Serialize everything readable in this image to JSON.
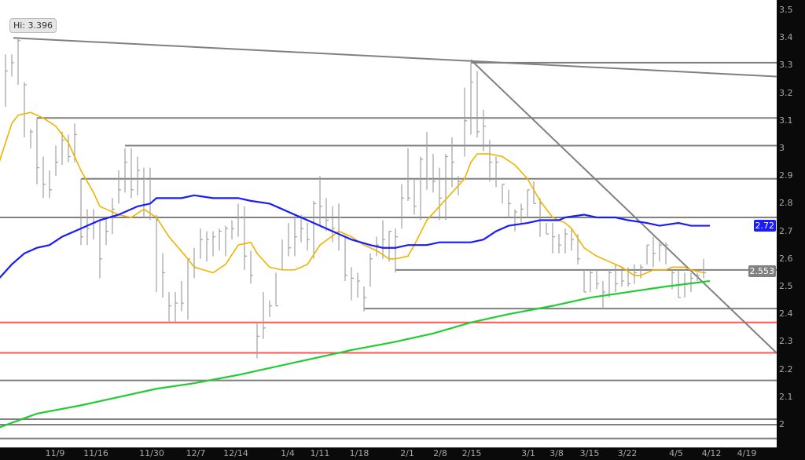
{
  "chart_data": {
    "type": "ohlc",
    "title": "",
    "xlabel": "",
    "ylabel": "",
    "ylim": [
      1.95,
      3.55
    ],
    "grid": false,
    "y_ticks": [
      "3.5",
      "3.4",
      "3.3",
      "3.2",
      "3.1",
      "3",
      "2.9",
      "2.8",
      "2.7",
      "2.6",
      "2.5",
      "2.4",
      "2.3",
      "2.2",
      "2.1",
      "2"
    ],
    "x_ticks": [
      "11/9",
      "11/16",
      "11/30",
      "12/7",
      "12/14",
      "1/4",
      "1/11",
      "1/18",
      "2/1",
      "2/8",
      "2/15",
      "3/1",
      "3/8",
      "3/15",
      "3/22",
      "4/5",
      "4/12",
      "4/19"
    ],
    "bars_hlc": [
      [
        3.34,
        3.15,
        3.28
      ],
      [
        3.34,
        3.26,
        3.31
      ],
      [
        3.4,
        3.23,
        3.39
      ],
      [
        3.24,
        3.04,
        3.23
      ],
      [
        3.07,
        3.0,
        3.06
      ],
      [
        3.11,
        2.87,
        2.93
      ],
      [
        2.97,
        2.82,
        2.87
      ],
      [
        2.92,
        2.82,
        2.85
      ],
      [
        3.01,
        2.9,
        2.95
      ],
      [
        3.06,
        2.94,
        3.03
      ],
      [
        3.05,
        2.95,
        2.97
      ],
      [
        3.09,
        2.95,
        3.05
      ],
      [
        2.89,
        2.65,
        2.68
      ],
      [
        2.78,
        2.65,
        2.71
      ],
      [
        2.78,
        2.67,
        2.73
      ],
      [
        2.74,
        2.53,
        2.6
      ],
      [
        2.75,
        2.65,
        2.7
      ],
      [
        2.82,
        2.69,
        2.78
      ],
      [
        2.92,
        2.8,
        2.85
      ],
      [
        3.0,
        2.84,
        2.95
      ],
      [
        3.0,
        2.82,
        2.85
      ],
      [
        2.97,
        2.83,
        2.92
      ],
      [
        2.93,
        2.75,
        2.89
      ],
      [
        2.93,
        2.74,
        2.75
      ],
      [
        2.76,
        2.48,
        2.74
      ],
      [
        2.62,
        2.46,
        2.55
      ],
      [
        2.48,
        2.37,
        2.43
      ],
      [
        2.48,
        2.37,
        2.44
      ],
      [
        2.52,
        2.41,
        2.44
      ],
      [
        2.6,
        2.38,
        2.6
      ],
      [
        2.64,
        2.53,
        2.57
      ],
      [
        2.71,
        2.6,
        2.67
      ],
      [
        2.7,
        2.59,
        2.67
      ],
      [
        2.7,
        2.61,
        2.68
      ],
      [
        2.71,
        2.63,
        2.7
      ],
      [
        2.72,
        2.61,
        2.71
      ],
      [
        2.74,
        2.67,
        2.71
      ],
      [
        2.8,
        2.68,
        2.75
      ],
      [
        2.79,
        2.56,
        2.61
      ],
      [
        2.63,
        2.51,
        2.54
      ],
      [
        2.37,
        2.24,
        2.32
      ],
      [
        2.48,
        2.31,
        2.35
      ],
      [
        2.45,
        2.39,
        2.43
      ],
      [
        2.55,
        2.43,
        2.43
      ],
      [
        2.67,
        2.56,
        2.56
      ],
      [
        2.73,
        2.61,
        2.64
      ],
      [
        2.76,
        2.61,
        2.68
      ],
      [
        2.76,
        2.66,
        2.71
      ],
      [
        2.73,
        2.63,
        2.67
      ],
      [
        2.81,
        2.6,
        2.8
      ],
      [
        2.9,
        2.72,
        2.79
      ],
      [
        2.82,
        2.7,
        2.74
      ],
      [
        2.79,
        2.66,
        2.71
      ],
      [
        2.8,
        2.63,
        2.75
      ],
      [
        2.68,
        2.52,
        2.54
      ],
      [
        2.57,
        2.45,
        2.53
      ],
      [
        2.55,
        2.46,
        2.52
      ],
      [
        2.5,
        2.41,
        2.46
      ],
      [
        2.62,
        2.5,
        2.6
      ],
      [
        2.68,
        2.61,
        2.65
      ],
      [
        2.74,
        2.6,
        2.67
      ],
      [
        2.7,
        2.59,
        2.7
      ],
      [
        2.71,
        2.55,
        2.68
      ],
      [
        2.87,
        2.71,
        2.82
      ],
      [
        3.0,
        2.81,
        2.82
      ],
      [
        2.89,
        2.76,
        2.79
      ],
      [
        2.97,
        2.74,
        2.96
      ],
      [
        3.06,
        2.85,
        2.89
      ],
      [
        2.98,
        2.84,
        2.88
      ],
      [
        2.93,
        2.74,
        2.82
      ],
      [
        2.98,
        2.74,
        2.97
      ],
      [
        3.04,
        2.86,
        2.95
      ],
      [
        2.9,
        2.83,
        2.88
      ],
      [
        3.22,
        2.97,
        3.1
      ],
      [
        3.31,
        3.05,
        3.24
      ],
      [
        3.28,
        3.04,
        3.06
      ],
      [
        3.14,
        2.99,
        3.08
      ],
      [
        3.03,
        2.88,
        2.95
      ],
      [
        2.97,
        2.86,
        2.95
      ],
      [
        2.87,
        2.8,
        2.87
      ],
      [
        2.85,
        2.75,
        2.8
      ],
      [
        2.78,
        2.7,
        2.77
      ],
      [
        2.8,
        2.73,
        2.78
      ],
      [
        2.85,
        2.75,
        2.85
      ],
      [
        2.88,
        2.8,
        2.8
      ],
      [
        2.82,
        2.68,
        2.8
      ],
      [
        2.73,
        2.69,
        2.69
      ],
      [
        2.73,
        2.62,
        2.68
      ],
      [
        2.69,
        2.62,
        2.65
      ],
      [
        2.71,
        2.62,
        2.69
      ],
      [
        2.71,
        2.63,
        2.67
      ],
      [
        2.69,
        2.58,
        2.6
      ],
      [
        2.56,
        2.48,
        2.48
      ],
      [
        2.56,
        2.48,
        2.55
      ],
      [
        2.56,
        2.49,
        2.51
      ],
      [
        2.52,
        2.42,
        2.48
      ],
      [
        2.56,
        2.46,
        2.55
      ],
      [
        2.58,
        2.48,
        2.51
      ],
      [
        2.57,
        2.5,
        2.52
      ],
      [
        2.57,
        2.5,
        2.51
      ],
      [
        2.58,
        2.51,
        2.55
      ],
      [
        2.58,
        2.53,
        2.57
      ],
      [
        2.65,
        2.58,
        2.65
      ],
      [
        2.68,
        2.57,
        2.62
      ],
      [
        2.66,
        2.59,
        2.65
      ],
      [
        2.66,
        2.58,
        2.65
      ],
      [
        2.56,
        2.49,
        2.55
      ],
      [
        2.56,
        2.46,
        2.46
      ],
      [
        2.55,
        2.46,
        2.51
      ],
      [
        2.55,
        2.48,
        2.53
      ],
      [
        2.55,
        2.52,
        2.54
      ],
      [
        2.6,
        2.53,
        2.55
      ]
    ],
    "moving_averages": [
      {
        "color": "#f0b400",
        "points": [
          [
            0,
            2.95
          ],
          [
            2,
            3.09
          ],
          [
            3,
            3.12
          ],
          [
            5,
            3.13
          ],
          [
            7,
            3.11
          ],
          [
            9,
            3.08
          ],
          [
            11,
            3.02
          ],
          [
            13,
            2.92
          ],
          [
            15,
            2.84
          ],
          [
            16,
            2.79
          ],
          [
            19,
            2.76
          ],
          [
            21,
            2.75
          ],
          [
            23,
            2.78
          ],
          [
            25,
            2.75
          ],
          [
            27,
            2.68
          ],
          [
            30,
            2.6
          ],
          [
            31,
            2.57
          ],
          [
            34,
            2.55
          ],
          [
            36,
            2.58
          ],
          [
            38,
            2.65
          ],
          [
            40,
            2.66
          ],
          [
            41,
            2.62
          ],
          [
            43,
            2.57
          ],
          [
            45,
            2.56
          ],
          [
            47,
            2.56
          ],
          [
            49,
            2.58
          ],
          [
            51,
            2.65
          ],
          [
            54,
            2.7
          ],
          [
            56,
            2.68
          ],
          [
            58,
            2.65
          ],
          [
            60,
            2.63
          ],
          [
            62,
            2.6
          ],
          [
            63,
            2.6
          ],
          [
            65,
            2.61
          ],
          [
            66,
            2.65
          ],
          [
            68,
            2.74
          ],
          [
            70,
            2.79
          ],
          [
            72,
            2.84
          ],
          [
            74,
            2.89
          ],
          [
            75,
            2.95
          ],
          [
            76,
            2.98
          ],
          [
            78,
            2.98
          ],
          [
            80,
            2.97
          ],
          [
            82,
            2.94
          ],
          [
            84,
            2.89
          ],
          [
            86,
            2.81
          ],
          [
            88,
            2.75
          ],
          [
            90,
            2.73
          ],
          [
            91,
            2.71
          ],
          [
            93,
            2.64
          ],
          [
            95,
            2.61
          ],
          [
            97,
            2.59
          ],
          [
            99,
            2.57
          ],
          [
            101,
            2.54
          ],
          [
            102,
            2.54
          ],
          [
            104,
            2.56
          ],
          [
            106,
            2.56
          ],
          [
            107,
            2.57
          ],
          [
            109,
            2.57
          ],
          [
            110,
            2.56
          ],
          [
            112,
            2.55
          ]
        ]
      },
      {
        "color": "#1a1aff",
        "points": [
          [
            0,
            2.53
          ],
          [
            2,
            2.58
          ],
          [
            4,
            2.62
          ],
          [
            6,
            2.64
          ],
          [
            8,
            2.65
          ],
          [
            10,
            2.68
          ],
          [
            13,
            2.71
          ],
          [
            15,
            2.73
          ],
          [
            16,
            2.74
          ],
          [
            19,
            2.76
          ],
          [
            22,
            2.79
          ],
          [
            24,
            2.8
          ],
          [
            25,
            2.82
          ],
          [
            27,
            2.82
          ],
          [
            29,
            2.82
          ],
          [
            31,
            2.83
          ],
          [
            34,
            2.82
          ],
          [
            36,
            2.82
          ],
          [
            38,
            2.82
          ],
          [
            40,
            2.81
          ],
          [
            43,
            2.8
          ],
          [
            45,
            2.78
          ],
          [
            46,
            2.77
          ],
          [
            48,
            2.75
          ],
          [
            50,
            2.73
          ],
          [
            52,
            2.71
          ],
          [
            54,
            2.69
          ],
          [
            56,
            2.67
          ],
          [
            59,
            2.65
          ],
          [
            61,
            2.64
          ],
          [
            63,
            2.64
          ],
          [
            65,
            2.65
          ],
          [
            68,
            2.65
          ],
          [
            70,
            2.66
          ],
          [
            73,
            2.66
          ],
          [
            75,
            2.66
          ],
          [
            77,
            2.67
          ],
          [
            79,
            2.7
          ],
          [
            81,
            2.72
          ],
          [
            84,
            2.73
          ],
          [
            86,
            2.74
          ],
          [
            89,
            2.74
          ],
          [
            90,
            2.75
          ],
          [
            93,
            2.76
          ],
          [
            95,
            2.75
          ],
          [
            98,
            2.75
          ],
          [
            100,
            2.74
          ],
          [
            103,
            2.73
          ],
          [
            105,
            2.72
          ],
          [
            108,
            2.73
          ],
          [
            110,
            2.72
          ],
          [
            113,
            2.72
          ]
        ]
      },
      {
        "color": "#22cc33",
        "points": [
          [
            0,
            1.99
          ],
          [
            6,
            2.04
          ],
          [
            13,
            2.07
          ],
          [
            19,
            2.1
          ],
          [
            25,
            2.13
          ],
          [
            31,
            2.15
          ],
          [
            38,
            2.18
          ],
          [
            44,
            2.21
          ],
          [
            50,
            2.24
          ],
          [
            56,
            2.27
          ],
          [
            63,
            2.3
          ],
          [
            69,
            2.33
          ],
          [
            75,
            2.37
          ],
          [
            81,
            2.4
          ],
          [
            88,
            2.43
          ],
          [
            94,
            2.46
          ],
          [
            100,
            2.48
          ],
          [
            106,
            2.5
          ],
          [
            113,
            2.52
          ]
        ]
      }
    ],
    "horizontal_lines": [
      {
        "price": 3.31,
        "from_bar": 75,
        "color": "#808080"
      },
      {
        "price": 3.11,
        "from_bar": 6,
        "color": "#808080"
      },
      {
        "price": 3.01,
        "from_bar": 20,
        "color": "#808080"
      },
      {
        "price": 2.89,
        "from_bar": 13,
        "color": "#808080"
      },
      {
        "price": 2.75,
        "from_bar": 0,
        "color": "#808080"
      },
      {
        "price": 2.56,
        "from_bar": 63,
        "color": "#808080"
      },
      {
        "price": 2.42,
        "from_bar": 58,
        "color": "#808080"
      },
      {
        "price": 2.37,
        "from_bar": 0,
        "color": "#ff5555"
      },
      {
        "price": 2.26,
        "from_bar": 0,
        "color": "#ff5555"
      },
      {
        "price": 2.16,
        "from_bar": 0,
        "color": "#808080"
      },
      {
        "price": 2.02,
        "from_bar": 0,
        "color": "#808080"
      },
      {
        "price": 2.0,
        "from_bar": 0,
        "color": "#808080"
      },
      {
        "price": 1.95,
        "from_bar": 0,
        "color": "#808080"
      }
    ],
    "trend_lines": [
      {
        "from": [
          2.25,
          3.4
        ],
        "to": [
          123.6,
          3.26
        ],
        "color": "#808080"
      },
      {
        "from": [
          75,
          3.32
        ],
        "to": [
          123.6,
          2.26
        ],
        "color": "#808080"
      }
    ],
    "high_callout": "Hi: 3.396",
    "last_tags": [
      {
        "label": "2.72",
        "price": 2.72,
        "bg": "#1a1aff",
        "fg": "#ffffff"
      },
      {
        "label": "2.553",
        "price": 2.553,
        "bg": "#808080",
        "fg": "#ffffff"
      }
    ]
  }
}
